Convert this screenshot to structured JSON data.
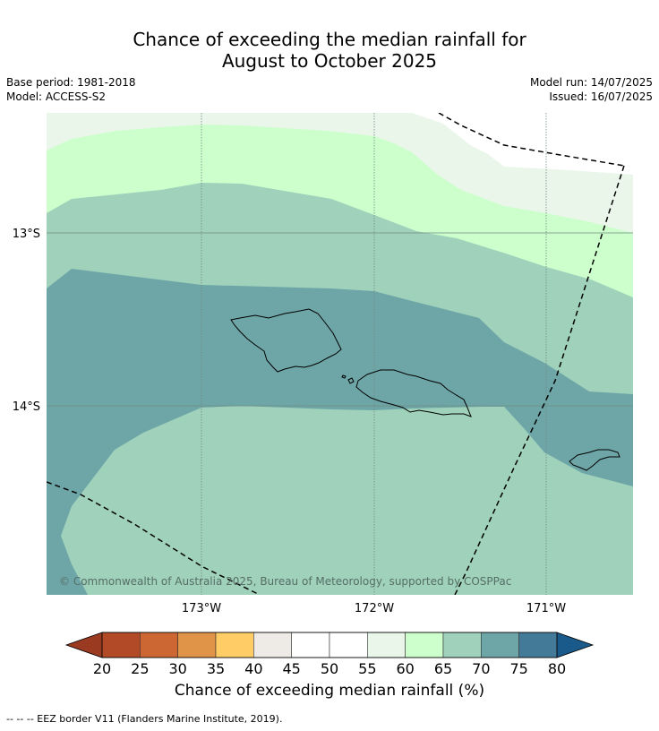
{
  "title_line1": "Chance of exceeding the median rainfall for",
  "title_line2": "August to October 2025",
  "base_period": "Base period: 1981-2018",
  "model": "Model: ACCESS-S2",
  "model_run": "Model run: 14/07/2025",
  "issued": "Issued: 16/07/2025",
  "map": {
    "lat_labels": [
      "13°S",
      "14°S"
    ],
    "lon_labels": [
      "173°W",
      "172°W",
      "171°W"
    ],
    "copyright": "© Commonwealth of Australia 2025, Bureau of Meteorology, supported by COSPPac"
  },
  "colorbar": {
    "ticks": [
      "20",
      "25",
      "30",
      "35",
      "40",
      "45",
      "50",
      "55",
      "60",
      "65",
      "70",
      "75",
      "80"
    ],
    "colors": [
      "#b24a28",
      "#cc6633",
      "#e09448",
      "#ffcc66",
      "#eeeae6",
      "#ffffff",
      "#ffffff",
      "#eaf6ea",
      "#ccffcc",
      "#9fd1bb",
      "#6ea6a8",
      "#437a98"
    ],
    "under_color": "#9a3a20",
    "over_color": "#1a5a8a",
    "label": "Chance of exceeding median rainfall (%)"
  },
  "footer": "--  --  -- EEZ border V11 (Flanders Marine Institute, 2019)."
}
